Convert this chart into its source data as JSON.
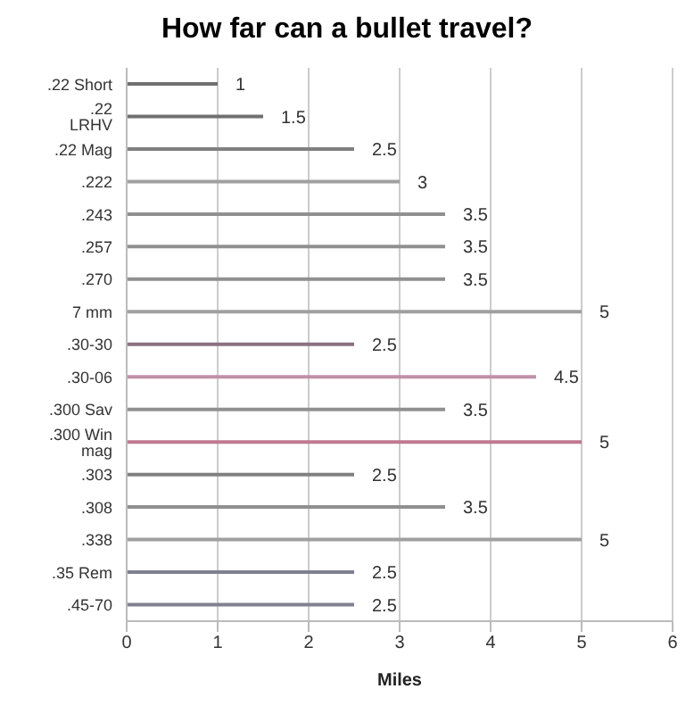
{
  "chart_data": {
    "type": "bar",
    "orientation": "horizontal",
    "title": "How far can a bullet travel?",
    "xlabel": "Miles",
    "categories": [
      ".22 Short",
      ".22 LRHV",
      ".22 Mag",
      ".222",
      ".243",
      ".257",
      ".270",
      "7 mm",
      ".30-30",
      ".30-06",
      ".300 Sav",
      ".300 Win mag",
      ".303",
      ".308",
      ".338",
      ".35 Rem",
      ".45-70"
    ],
    "values": [
      1,
      1.5,
      2.5,
      3,
      3.5,
      3.5,
      3.5,
      5,
      2.5,
      4.5,
      3.5,
      5,
      2.5,
      3.5,
      5,
      2.5,
      2.5
    ],
    "colors": [
      "#707070",
      "#707070",
      "#808080",
      "#a0a0a0",
      "#909090",
      "#909090",
      "#909090",
      "#a0a0a0",
      "#8a7080",
      "#c090a8",
      "#909090",
      "#c07890",
      "#808080",
      "#909090",
      "#a0a0a0",
      "#808090",
      "#808090"
    ],
    "xlim": [
      0,
      6
    ],
    "xticks": [
      0,
      1,
      2,
      3,
      4,
      5,
      6
    ],
    "grid": "x",
    "data_labels": true
  }
}
